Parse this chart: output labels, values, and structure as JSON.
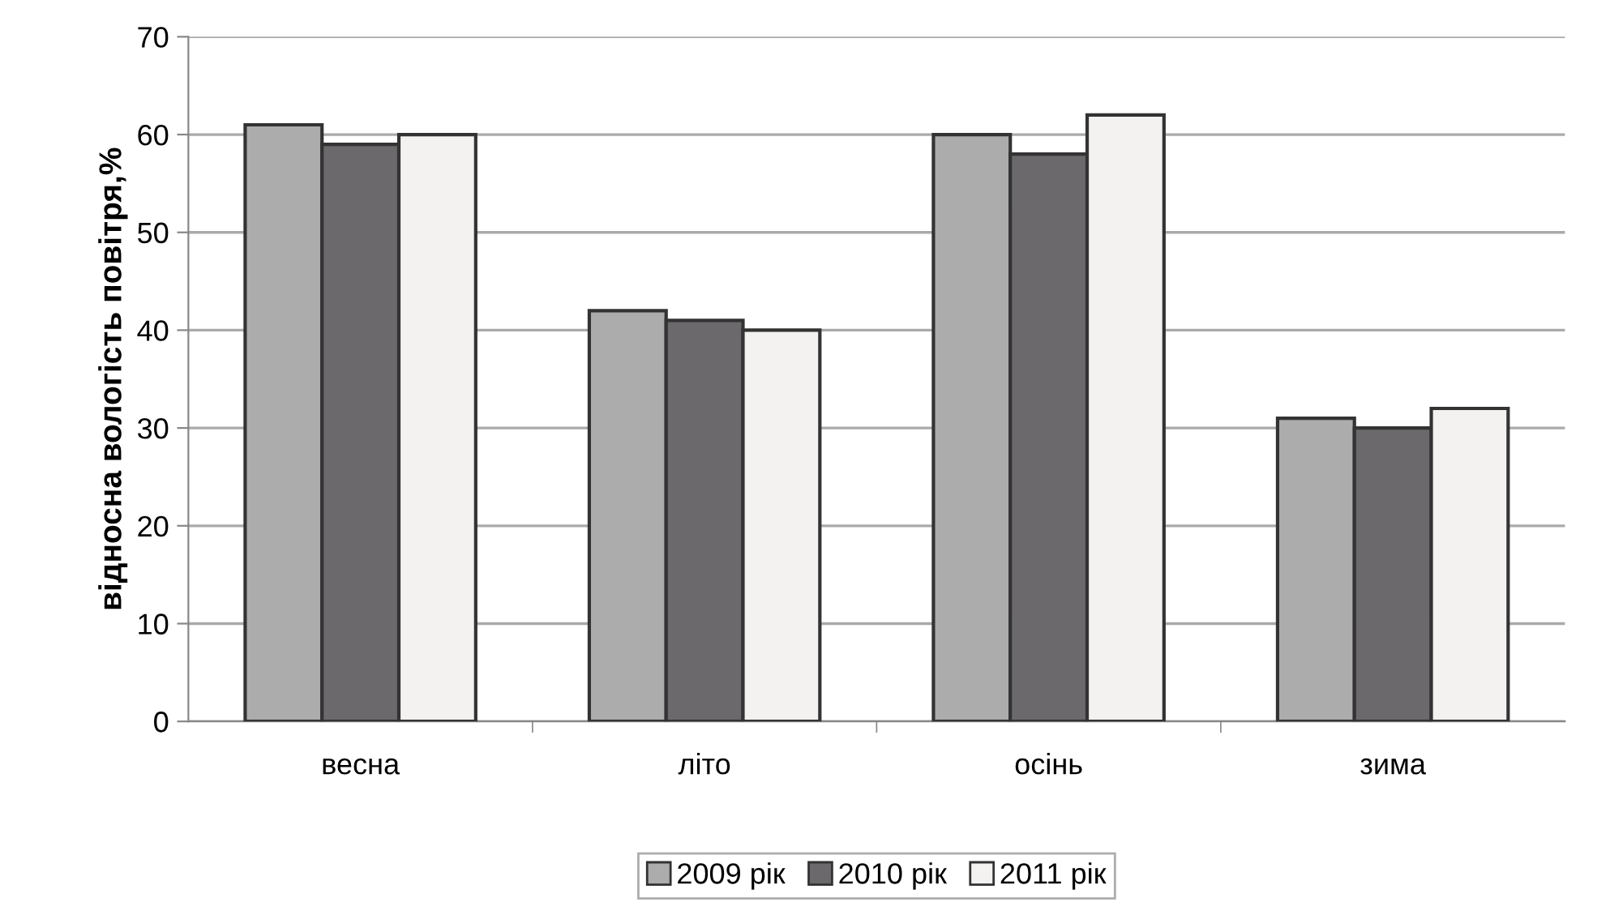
{
  "chart_data": {
    "type": "bar",
    "ylabel": "відносна вологість повітря,%",
    "categories": [
      "весна",
      "літо",
      "осінь",
      "зима"
    ],
    "series": [
      {
        "name": "2009 рік",
        "color": "#acacac",
        "values": [
          61,
          42,
          60,
          31
        ]
      },
      {
        "name": "2010 рік",
        "color": "#6b696c",
        "values": [
          59,
          41,
          58,
          30
        ]
      },
      {
        "name": "2011 рік",
        "color": "#f3f2f1",
        "values": [
          60,
          40,
          62,
          32
        ]
      }
    ],
    "ylim": [
      0,
      70
    ],
    "yticks": [
      0,
      10,
      20,
      30,
      40,
      50,
      60,
      70
    ],
    "grid": "y",
    "legend": "bottom"
  }
}
